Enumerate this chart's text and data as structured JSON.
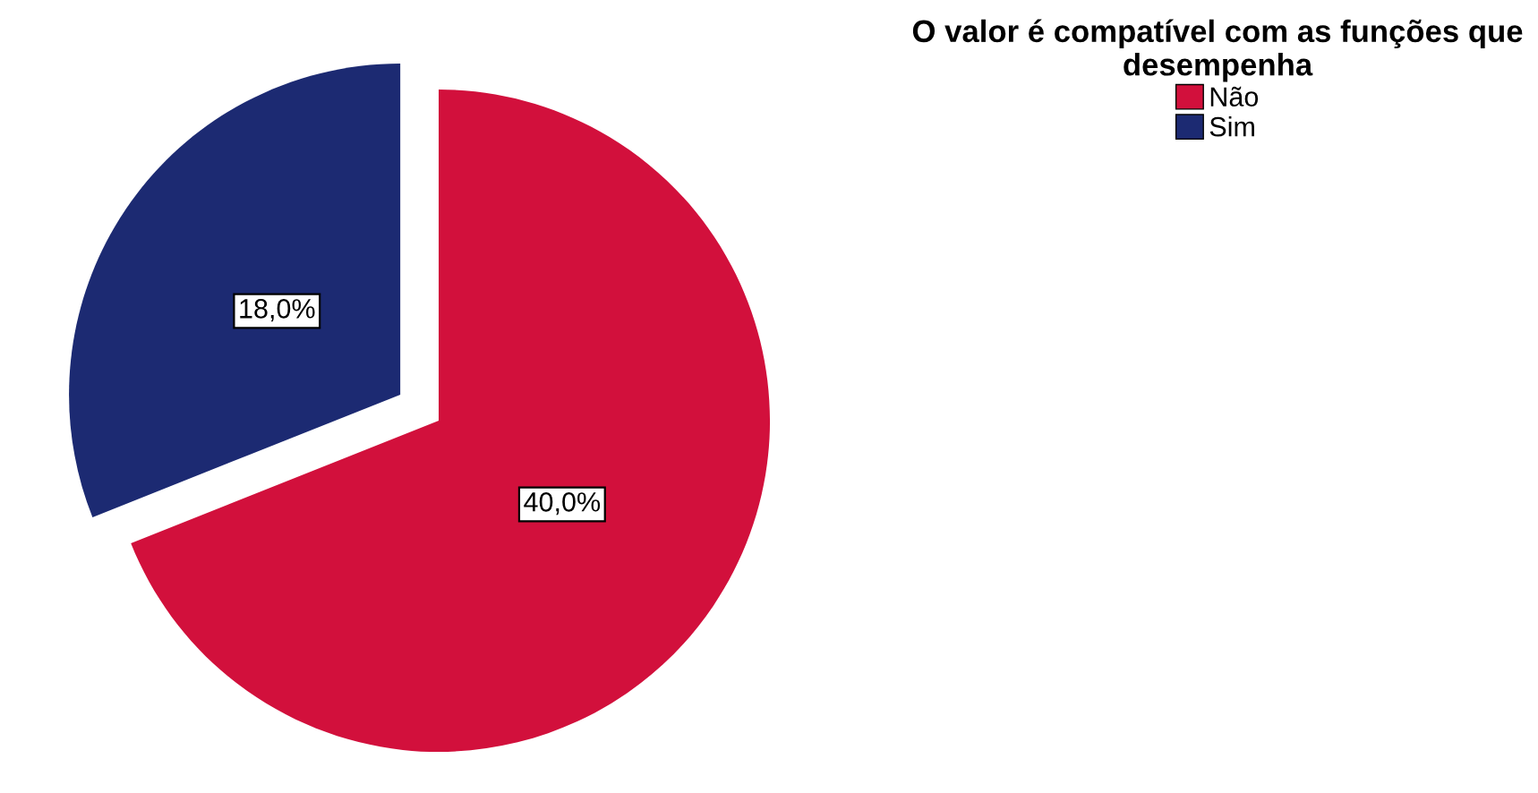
{
  "chart_data": {
    "type": "pie",
    "legend_title": "O valor é compatível com as funções que\ndesempenha",
    "categories": [
      "Não",
      "Sim"
    ],
    "values": [
      40,
      18
    ],
    "colors": [
      "#d2103c",
      "#1c2a72"
    ],
    "value_labels": [
      "40,0%",
      "18,0%"
    ],
    "legend": "top right"
  }
}
